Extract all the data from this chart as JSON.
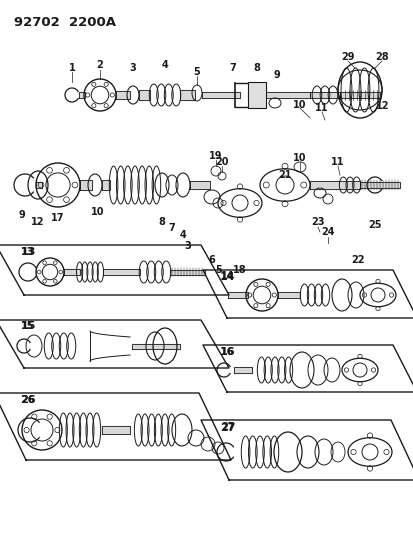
{
  "title": "92702  2200A",
  "bg_color": "#ffffff",
  "lc": "#1a1a1a",
  "fig_w": 4.14,
  "fig_h": 5.33,
  "dpi": 100
}
